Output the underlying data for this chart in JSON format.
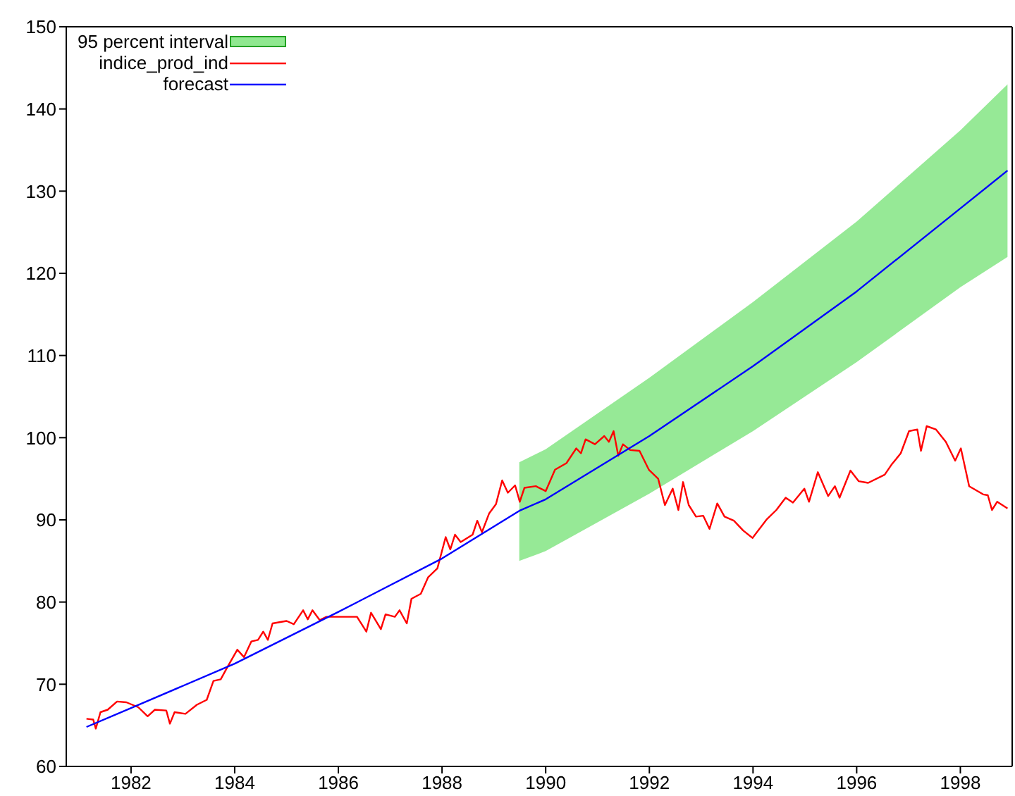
{
  "chart_data": {
    "type": "line",
    "xlim": [
      1980.75,
      1999
    ],
    "xticks": [
      1982,
      1984,
      1986,
      1988,
      1990,
      1992,
      1994,
      1996,
      1998
    ],
    "ylim": [
      60,
      150
    ],
    "yticks": [
      60,
      70,
      80,
      90,
      100,
      110,
      120,
      130,
      140,
      150
    ],
    "grid": false,
    "legend": "top left",
    "annotations": [
      "95 percent interval"
    ],
    "series": [
      {
        "name": "indice_prod_ind",
        "color": "#ff0000",
        "x": [
          1981.14,
          1981.27,
          1981.32,
          1981.41,
          1981.55,
          1981.73,
          1981.91,
          1982.14,
          1982.32,
          1982.46,
          1982.68,
          1982.75,
          1982.84,
          1983.05,
          1983.27,
          1983.46,
          1983.59,
          1983.73,
          1983.86,
          1984.05,
          1984.18,
          1984.32,
          1984.45,
          1984.55,
          1984.64,
          1984.73,
          1985.0,
          1985.14,
          1985.32,
          1985.41,
          1985.5,
          1985.64,
          1985.77,
          1986.36,
          1986.54,
          1986.63,
          1986.82,
          1986.91,
          1987.09,
          1987.18,
          1987.32,
          1987.41,
          1987.59,
          1987.73,
          1987.91,
          1988.07,
          1988.16,
          1988.25,
          1988.36,
          1988.59,
          1988.68,
          1988.77,
          1988.91,
          1989.04,
          1989.16,
          1989.27,
          1989.41,
          1989.5,
          1989.59,
          1989.81,
          1990.0,
          1990.18,
          1990.4,
          1990.59,
          1990.68,
          1990.77,
          1990.95,
          1991.13,
          1991.22,
          1991.31,
          1991.4,
          1991.49,
          1991.63,
          1991.81,
          1991.99,
          1992.17,
          1992.3,
          1992.45,
          1992.56,
          1992.65,
          1992.76,
          1992.9,
          1993.04,
          1993.16,
          1993.31,
          1993.45,
          1993.63,
          1993.81,
          1993.99,
          1994.27,
          1994.45,
          1994.63,
          1994.77,
          1994.99,
          1995.08,
          1995.25,
          1995.45,
          1995.58,
          1995.67,
          1995.88,
          1996.04,
          1996.22,
          1996.54,
          1996.67,
          1996.85,
          1997.01,
          1997.17,
          1997.24,
          1997.35,
          1997.53,
          1997.72,
          1997.9,
          1998.01,
          1998.17,
          1998.44,
          1998.53,
          1998.61,
          1998.71,
          1998.91
        ],
        "values": [
          65.8,
          65.7,
          64.6,
          66.6,
          66.9,
          67.9,
          67.8,
          67.2,
          66.1,
          66.9,
          66.8,
          65.2,
          66.6,
          66.4,
          67.5,
          68.1,
          70.4,
          70.6,
          72.1,
          74.2,
          73.3,
          75.2,
          75.4,
          76.4,
          75.4,
          77.4,
          77.7,
          77.3,
          79.0,
          77.9,
          79.0,
          77.8,
          78.2,
          78.2,
          76.4,
          78.7,
          76.7,
          78.5,
          78.2,
          79.0,
          77.4,
          80.4,
          81.0,
          83.0,
          84.1,
          87.9,
          86.4,
          88.2,
          87.3,
          88.2,
          89.9,
          88.5,
          90.8,
          91.9,
          94.8,
          93.3,
          94.2,
          92.2,
          93.9,
          94.1,
          93.5,
          96.1,
          96.9,
          98.7,
          98.1,
          99.8,
          99.2,
          100.2,
          99.5,
          100.8,
          97.8,
          99.2,
          98.5,
          98.4,
          96.1,
          95.0,
          91.8,
          93.8,
          91.2,
          94.6,
          91.8,
          90.4,
          90.5,
          88.9,
          92.0,
          90.4,
          89.9,
          88.7,
          87.8,
          90.1,
          91.2,
          92.7,
          92.1,
          93.8,
          92.2,
          95.8,
          92.9,
          94.1,
          92.7,
          96.0,
          94.7,
          94.5,
          95.5,
          96.7,
          98.1,
          100.8,
          101.0,
          98.4,
          101.4,
          101.0,
          99.5,
          97.2,
          98.7,
          94.1,
          93.1,
          93.0,
          91.2,
          92.2,
          91.4
        ]
      },
      {
        "name": "forecast",
        "color": "#0000ff",
        "x": [
          1981.14,
          1982,
          1984,
          1986,
          1988,
          1989.49,
          1990,
          1992,
          1994,
          1996,
          1998,
          1998.91
        ],
        "values": [
          64.8,
          67.1,
          72.5,
          78.8,
          85.3,
          91.1,
          92.5,
          100.2,
          108.7,
          117.8,
          127.9,
          132.5
        ],
        "lower": [
          null,
          null,
          null,
          null,
          null,
          85.0,
          86.2,
          93.2,
          100.8,
          109.2,
          118.3,
          122.0
        ],
        "upper": [
          null,
          null,
          null,
          null,
          null,
          97.0,
          98.6,
          107.3,
          116.5,
          126.3,
          137.4,
          143.0
        ]
      }
    ]
  }
}
